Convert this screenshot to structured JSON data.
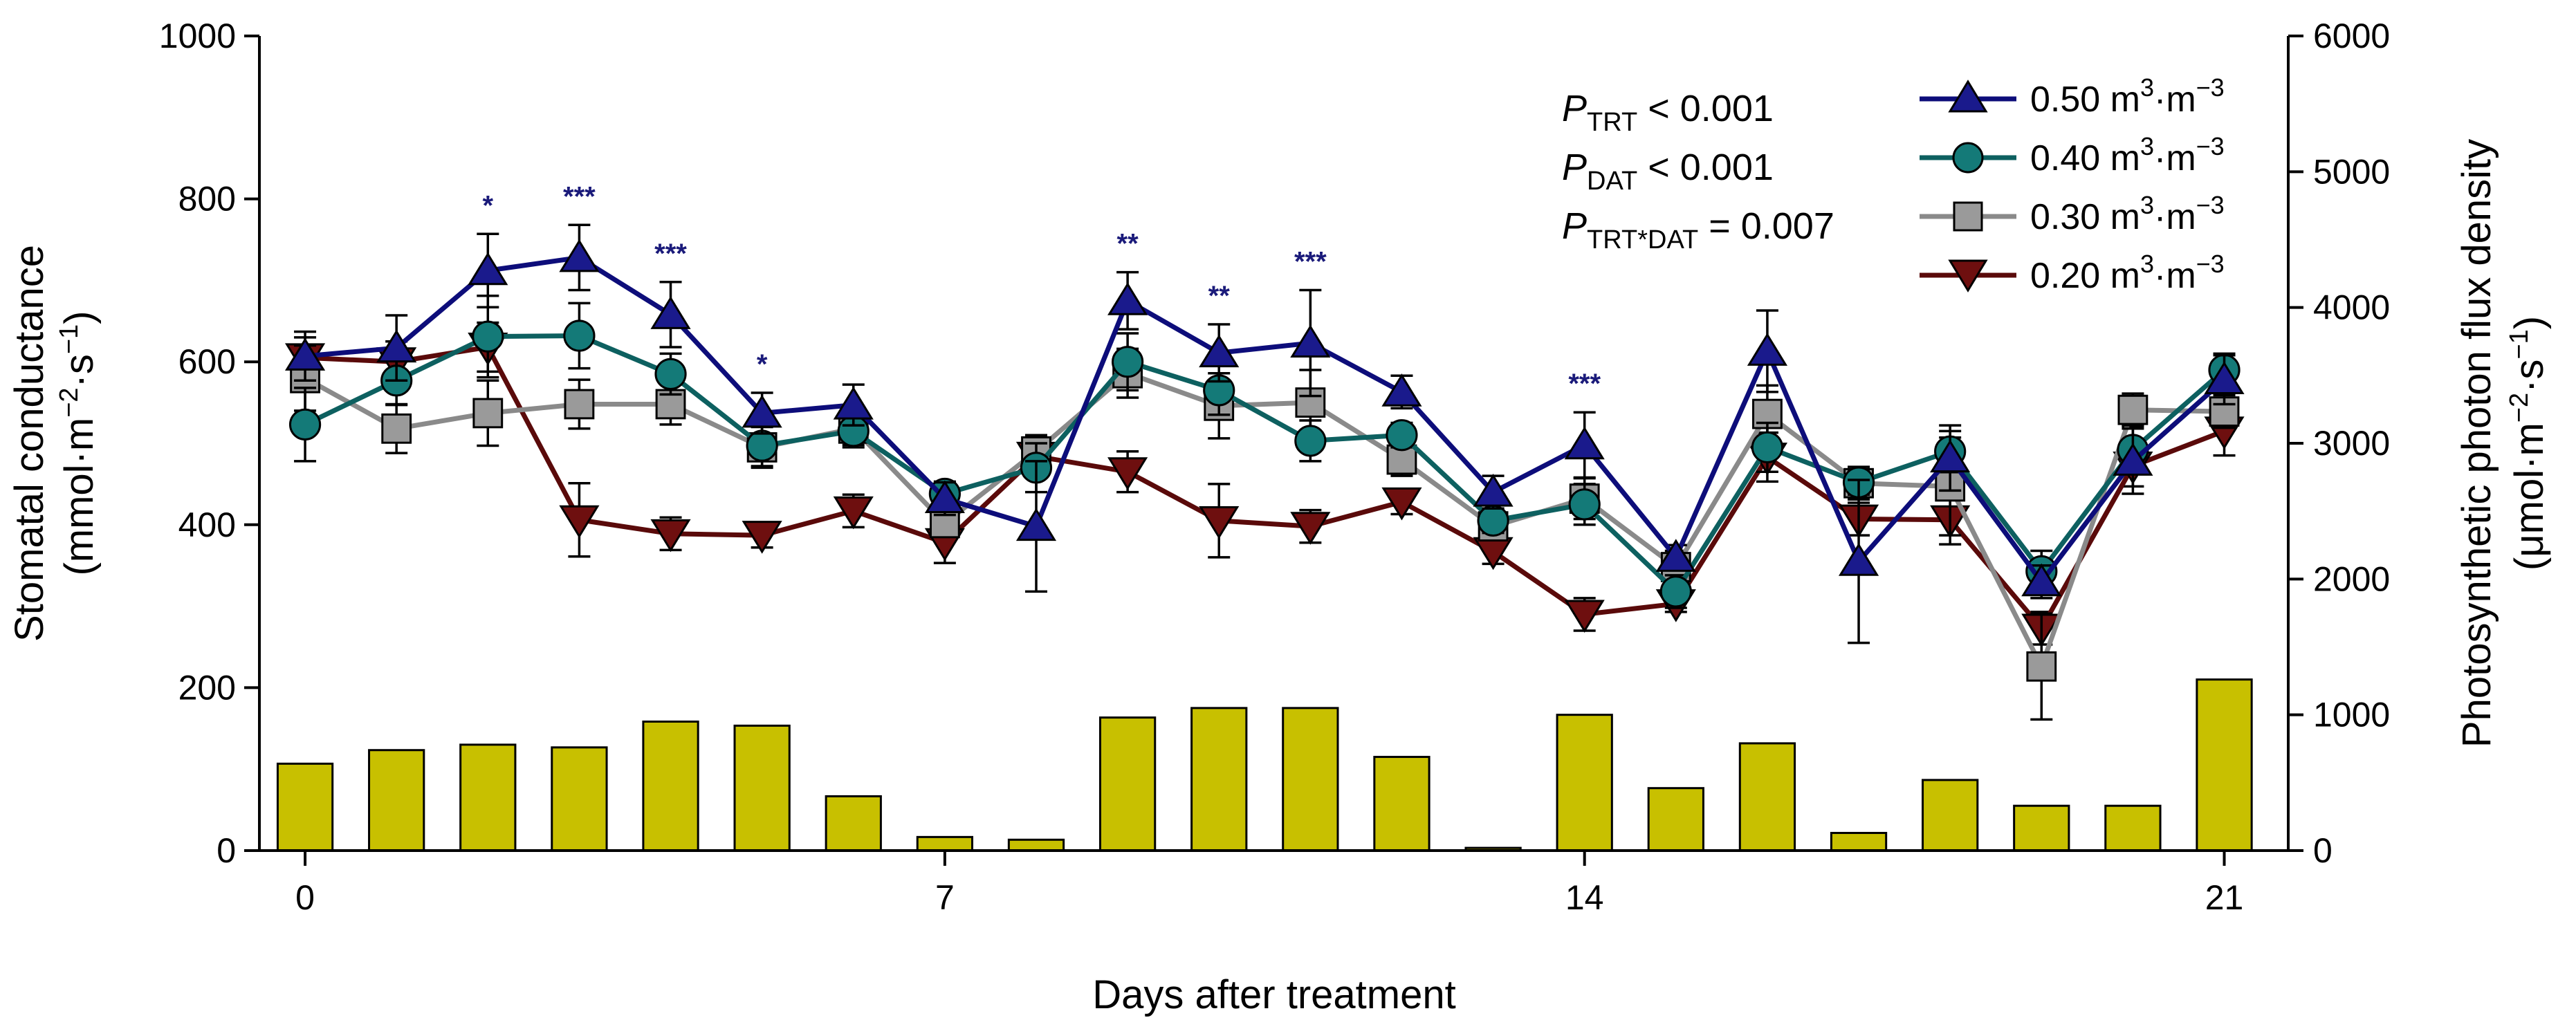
{
  "chart_data": {
    "type": "line+bar",
    "xlabel": "Days after treatment",
    "ylabel_left": {
      "line1": "Stomatal conductance",
      "line2": "(mmol·m",
      "sup1": "−2",
      "mid": "·s",
      "sup2": "−1",
      "end": ")"
    },
    "ylabel_right": {
      "line1": "Photosynthetic photon flux density",
      "line2": "(μmol·m",
      "sup1": "−2",
      "mid": "·s",
      "sup2": "−1",
      "end": ")"
    },
    "xlim": [
      -0.5,
      21.7
    ],
    "x_ticks": [
      0,
      7,
      14,
      21
    ],
    "ylim_left": [
      0,
      1000
    ],
    "yticks_left": [
      0,
      200,
      400,
      600,
      800,
      1000
    ],
    "ylim_right": [
      0,
      6000
    ],
    "yticks_right": [
      0,
      1000,
      2000,
      3000,
      4000,
      5000,
      6000
    ],
    "ppfd": {
      "days": [
        0,
        1,
        2,
        3,
        4,
        5,
        6,
        7,
        8,
        9,
        10,
        11,
        12,
        13,
        14,
        15,
        16,
        17,
        18,
        19,
        20,
        21
      ],
      "values": [
        640,
        740,
        780,
        760,
        950,
        920,
        400,
        100,
        80,
        980,
        1050,
        1050,
        690,
        20,
        1000,
        460,
        790,
        130,
        520,
        330,
        330,
        1260
      ]
    },
    "series": [
      {
        "name": "0.50 m³·m⁻³",
        "label_main": "0.50 m",
        "label_sup1": "3",
        "label_mid": "·m",
        "label_sup2": "−3",
        "marker": "triangle-up",
        "color": "#0d0d7a",
        "fill": "#1a1a8c",
        "days": [
          0,
          1,
          2,
          3,
          4,
          5,
          6,
          7,
          8,
          9,
          10,
          11,
          12,
          13,
          14,
          15,
          16,
          17,
          18,
          19,
          20,
          21
        ],
        "values": [
          607,
          617,
          712,
          728,
          658,
          537,
          547,
          432,
          398,
          675,
          611,
          623,
          563,
          440,
          498,
          360,
          613,
          355,
          482,
          330,
          478,
          578
        ],
        "errors": [
          30,
          40,
          45,
          40,
          40,
          25,
          25,
          20,
          80,
          35,
          35,
          65,
          20,
          20,
          40,
          15,
          50,
          100,
          40,
          20,
          40,
          30
        ]
      },
      {
        "name": "0.40 m³·m⁻³",
        "label_main": "0.40 m",
        "label_sup1": "3",
        "label_mid": "·m",
        "label_sup2": "−3",
        "marker": "circle",
        "color": "#0d6060",
        "fill": "#147a78",
        "days": [
          0,
          1,
          2,
          3,
          4,
          5,
          6,
          7,
          8,
          9,
          10,
          11,
          12,
          13,
          14,
          15,
          16,
          17,
          18,
          19,
          20,
          21
        ],
        "values": [
          523,
          577,
          631,
          632,
          585,
          497,
          515,
          438,
          470,
          600,
          565,
          503,
          510,
          405,
          425,
          318,
          495,
          452,
          490,
          343,
          492,
          590
        ],
        "errors": [
          45,
          30,
          50,
          40,
          25,
          25,
          20,
          15,
          30,
          35,
          30,
          25,
          15,
          15,
          25,
          20,
          30,
          15,
          25,
          25,
          30,
          20
        ]
      },
      {
        "name": "0.30 m³·m⁻³",
        "label_main": "0.30 m",
        "label_sup1": "3",
        "label_mid": "·m",
        "label_sup2": "−3",
        "marker": "square",
        "color": "#8a8a8a",
        "fill": "#9a9a9a",
        "days": [
          0,
          1,
          2,
          3,
          4,
          5,
          6,
          7,
          8,
          9,
          10,
          11,
          12,
          13,
          14,
          15,
          16,
          17,
          18,
          19,
          20,
          21
        ],
        "values": [
          580,
          518,
          537,
          548,
          548,
          495,
          518,
          402,
          490,
          586,
          546,
          550,
          480,
          398,
          432,
          348,
          536,
          451,
          447,
          226,
          541,
          539
        ],
        "errors": [
          40,
          30,
          40,
          30,
          25,
          25,
          20,
          15,
          20,
          30,
          40,
          40,
          20,
          15,
          25,
          20,
          35,
          20,
          60,
          65,
          20,
          20
        ]
      },
      {
        "name": "0.20 m³·m⁻³",
        "label_main": "0.20 m",
        "label_sup1": "3",
        "label_mid": "·m",
        "label_sup2": "−3",
        "marker": "triangle-down",
        "color": "#5a0a0a",
        "fill": "#6e0f0f",
        "days": [
          0,
          1,
          2,
          3,
          4,
          5,
          6,
          7,
          8,
          9,
          10,
          11,
          12,
          13,
          14,
          15,
          16,
          17,
          18,
          19,
          20,
          21
        ],
        "values": [
          605,
          600,
          618,
          406,
          389,
          387,
          417,
          378,
          484,
          465,
          405,
          398,
          428,
          367,
          290,
          303,
          483,
          407,
          406,
          273,
          472,
          515
        ],
        "errors": [
          25,
          25,
          30,
          45,
          20,
          15,
          20,
          25,
          20,
          25,
          45,
          20,
          15,
          15,
          20,
          10,
          30,
          20,
          30,
          20,
          25,
          30
        ]
      }
    ],
    "significance": [
      {
        "day": 2,
        "label": "*"
      },
      {
        "day": 3,
        "label": "***"
      },
      {
        "day": 4,
        "label": "***"
      },
      {
        "day": 5,
        "label": "*"
      },
      {
        "day": 9,
        "label": "**"
      },
      {
        "day": 10,
        "label": "**"
      },
      {
        "day": 11,
        "label": "***"
      },
      {
        "day": 14,
        "label": "***"
      }
    ],
    "stats": [
      {
        "p": "P",
        "sub": "TRT",
        "rest": " < 0.001"
      },
      {
        "p": "P",
        "sub": "DAT",
        "rest": " < 0.001"
      },
      {
        "p": "P",
        "sub": "TRT*DAT",
        "rest": " = 0.007"
      }
    ]
  }
}
